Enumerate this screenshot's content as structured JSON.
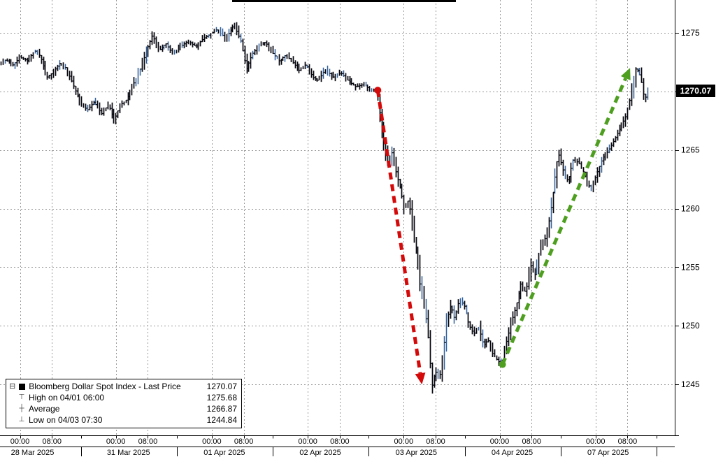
{
  "chart_data": {
    "type": "ohlc-bar",
    "title": "",
    "x_unit": "trading days since 28 Mar 2025 00:00 (weekends skipped)",
    "y_unit": "index level",
    "y_range": [
      1240.65,
      1277.8
    ],
    "y_ticks": [
      {
        "v": 1275,
        "label": "1275"
      },
      {
        "v": 1270,
        "label": ""
      },
      {
        "v": 1265,
        "label": "1265"
      },
      {
        "v": 1260,
        "label": "1260"
      },
      {
        "v": 1255,
        "label": "1255"
      },
      {
        "v": 1250,
        "label": "1250"
      },
      {
        "v": 1245,
        "label": "1245"
      }
    ],
    "x_axis": {
      "time_labels": [
        "00:00",
        "08:00"
      ],
      "dates": [
        "28 Mar 2025",
        "31 Mar 2025",
        "01 Apr 2025",
        "02 Apr 2025",
        "03 Apr 2025",
        "04 Apr 2025",
        "07 Apr 2025"
      ]
    },
    "last_price": "1270.07",
    "colors": {
      "bars": "#06060f",
      "bar_accent": "#2e5f9b",
      "grid": "#999999",
      "axis": "#000000",
      "decline_arrow": "#d40a0a",
      "rally_arrow": "#4e9f1f",
      "badge_bg": "#000000",
      "badge_text": "#ffffff"
    },
    "price_path": [
      [
        -0.2,
        1272.3
      ],
      [
        -0.13,
        1272.7
      ],
      [
        -0.06,
        1272.2
      ],
      [
        0.02,
        1272.9
      ],
      [
        0.1,
        1272.6
      ],
      [
        0.17,
        1273.5
      ],
      [
        0.23,
        1273.0
      ],
      [
        0.3,
        1271.2
      ],
      [
        0.36,
        1271.6
      ],
      [
        0.43,
        1272.4
      ],
      [
        0.5,
        1272.0
      ],
      [
        0.57,
        1270.6
      ],
      [
        0.64,
        1269.2
      ],
      [
        0.72,
        1268.4
      ],
      [
        0.79,
        1269.1
      ],
      [
        0.87,
        1268.1
      ],
      [
        0.94,
        1268.9
      ],
      [
        1.0,
        1267.5
      ],
      [
        1.06,
        1268.8
      ],
      [
        1.13,
        1269.3
      ],
      [
        1.2,
        1270.6
      ],
      [
        1.27,
        1271.9
      ],
      [
        1.33,
        1273.3
      ],
      [
        1.4,
        1274.8
      ],
      [
        1.47,
        1273.5
      ],
      [
        1.54,
        1274.1
      ],
      [
        1.61,
        1273.2
      ],
      [
        1.69,
        1273.8
      ],
      [
        1.77,
        1274.3
      ],
      [
        1.85,
        1273.8
      ],
      [
        1.93,
        1274.5
      ],
      [
        2.0,
        1274.9
      ],
      [
        2.08,
        1275.3
      ],
      [
        2.16,
        1274.5
      ],
      [
        2.25,
        1275.68
      ],
      [
        2.32,
        1274.3
      ],
      [
        2.38,
        1271.9
      ],
      [
        2.44,
        1273.2
      ],
      [
        2.51,
        1273.9
      ],
      [
        2.58,
        1274.2
      ],
      [
        2.65,
        1273.3
      ],
      [
        2.72,
        1272.6
      ],
      [
        2.79,
        1273.1
      ],
      [
        2.86,
        1272.5
      ],
      [
        2.93,
        1271.8
      ],
      [
        3.0,
        1272.3
      ],
      [
        3.07,
        1271.2
      ],
      [
        3.13,
        1270.9
      ],
      [
        3.2,
        1271.9
      ],
      [
        3.28,
        1271.2
      ],
      [
        3.36,
        1271.6
      ],
      [
        3.44,
        1270.9
      ],
      [
        3.52,
        1270.4
      ],
      [
        3.6,
        1270.6
      ],
      [
        3.68,
        1270.1
      ],
      [
        3.74,
        1270.2
      ],
      [
        3.78,
        1267.4
      ],
      [
        3.82,
        1265.2
      ],
      [
        3.86,
        1263.8
      ],
      [
        3.9,
        1264.9
      ],
      [
        3.94,
        1263.0
      ],
      [
        3.98,
        1261.8
      ],
      [
        4.03,
        1259.9
      ],
      [
        4.07,
        1260.8
      ],
      [
        4.11,
        1258.4
      ],
      [
        4.15,
        1256.2
      ],
      [
        4.19,
        1253.5
      ],
      [
        4.23,
        1252.2
      ],
      [
        4.27,
        1249.3
      ],
      [
        4.3125,
        1244.84
      ],
      [
        4.35,
        1246.2
      ],
      [
        4.39,
        1245.3
      ],
      [
        4.43,
        1247.8
      ],
      [
        4.47,
        1250.6
      ],
      [
        4.51,
        1251.8
      ],
      [
        4.55,
        1250.6
      ],
      [
        4.6,
        1252.3
      ],
      [
        4.65,
        1251.7
      ],
      [
        4.7,
        1250.1
      ],
      [
        4.75,
        1249.3
      ],
      [
        4.8,
        1249.9
      ],
      [
        4.85,
        1248.3
      ],
      [
        4.9,
        1248.8
      ],
      [
        4.95,
        1247.5
      ],
      [
        5.0,
        1247.0
      ],
      [
        5.04,
        1246.7
      ],
      [
        5.09,
        1248.6
      ],
      [
        5.14,
        1250.3
      ],
      [
        5.19,
        1251.7
      ],
      [
        5.24,
        1253.6
      ],
      [
        5.29,
        1252.8
      ],
      [
        5.34,
        1255.2
      ],
      [
        5.39,
        1254.3
      ],
      [
        5.44,
        1256.6
      ],
      [
        5.49,
        1257.4
      ],
      [
        5.54,
        1259.2
      ],
      [
        5.58,
        1261.7
      ],
      [
        5.63,
        1264.8
      ],
      [
        5.68,
        1263.3
      ],
      [
        5.73,
        1262.3
      ],
      [
        5.79,
        1264.3
      ],
      [
        5.85,
        1263.8
      ],
      [
        5.91,
        1262.8
      ],
      [
        5.97,
        1261.6
      ],
      [
        6.03,
        1263.0
      ],
      [
        6.09,
        1264.3
      ],
      [
        6.15,
        1264.9
      ],
      [
        6.21,
        1265.8
      ],
      [
        6.27,
        1266.8
      ],
      [
        6.33,
        1267.8
      ],
      [
        6.39,
        1269.8
      ],
      [
        6.44,
        1272.1
      ],
      [
        6.49,
        1271.2
      ],
      [
        6.53,
        1269.3
      ],
      [
        6.57,
        1270.07
      ]
    ],
    "annotations": [
      {
        "id": "selloff-arrow",
        "direction": "down",
        "color": "#d40a0a",
        "from": [
          3.73,
          1270.1
        ],
        "to": [
          4.19,
          1245.0
        ]
      },
      {
        "id": "rally-arrow",
        "direction": "up",
        "color": "#4e9f1f",
        "from": [
          5.03,
          1246.7
        ],
        "to": [
          6.36,
          1272.0
        ]
      }
    ]
  },
  "legend": {
    "expander_glyph": "⊟",
    "series": {
      "label": "Bloomberg Dollar Spot Index - Last Price",
      "value": "1270.07"
    },
    "high": {
      "glyph": "⊤",
      "label": "High on 04/01 06:00",
      "value": "1275.68"
    },
    "average": {
      "glyph": "┼",
      "label": "Average",
      "value": "1266.87"
    },
    "low": {
      "glyph": "⊥",
      "label": "Low on 04/03 07:30",
      "value": "1244.84"
    }
  }
}
